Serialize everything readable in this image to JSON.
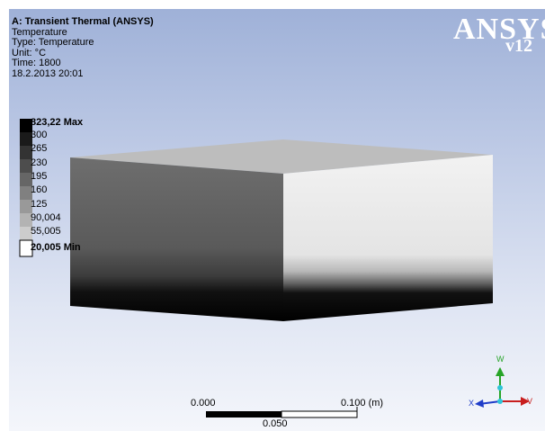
{
  "title_block": {
    "title": "A: Transient Thermal (ANSYS)",
    "result": "Temperature",
    "type": "Type: Temperature",
    "unit": "Unit: °C",
    "time": "Time: 1800",
    "date": "18.2.2013 20:01"
  },
  "logo": {
    "text": "ANSYS",
    "version": "v12"
  },
  "legend": {
    "labels": [
      "823,22 Max",
      "300",
      "265",
      "230",
      "195",
      "160",
      "125",
      "90,004",
      "55,005",
      "20,005 Min"
    ],
    "colors": [
      "#000000",
      "#1a1a1a",
      "#333333",
      "#4d4d4d",
      "#666666",
      "#808080",
      "#999999",
      "#b3b3b3",
      "#cccccc",
      "#ffffff"
    ]
  },
  "scale_bar": {
    "left_label": "0.000",
    "right_label": "0.100 (m)",
    "mid_label": "0.050"
  },
  "triad": {
    "w_label": "W",
    "v_label": "V",
    "x_label": "X"
  }
}
